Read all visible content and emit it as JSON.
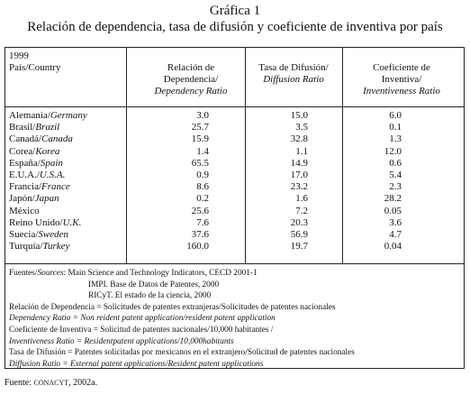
{
  "header": {
    "label": "Gráfica 1",
    "title": "Relación de dependencia, tasa de difusión y coeficiente de inventiva por país"
  },
  "table": {
    "year": "1999",
    "stub_header": "País/Country",
    "columns": [
      [
        {
          "text": "Relación de"
        },
        {
          "text": "Dependencia/"
        },
        {
          "text": "Dependency Ratio",
          "italic": true
        }
      ],
      [
        {
          "text": "Tasa de Difusión/"
        },
        {
          "text": "Diffusion Ratio",
          "italic": true
        }
      ],
      [
        {
          "text": "Coeficiente de"
        },
        {
          "text": "Inventiva/"
        },
        {
          "text": "Inventiveness Ratio",
          "italic": true
        }
      ]
    ],
    "rows": [
      {
        "country": [
          {
            "text": "Alemania/"
          },
          {
            "text": "Germany",
            "italic": true
          }
        ],
        "values": [
          "3.0",
          "15.0",
          "6.0"
        ]
      },
      {
        "country": [
          {
            "text": "Brasil/"
          },
          {
            "text": "Brazil",
            "italic": true
          }
        ],
        "values": [
          "25.7",
          "3.5",
          "0.1"
        ]
      },
      {
        "country": [
          {
            "text": "Canadá/"
          },
          {
            "text": "Canada",
            "italic": true
          }
        ],
        "values": [
          "15.9",
          "32.8",
          "1.3"
        ]
      },
      {
        "country": [
          {
            "text": "Corea/"
          },
          {
            "text": "Korea",
            "italic": true
          }
        ],
        "values": [
          "1.4",
          "1.1",
          "12.0"
        ]
      },
      {
        "country": [
          {
            "text": "España/"
          },
          {
            "text": "Spain",
            "italic": true
          }
        ],
        "values": [
          "65.5",
          "14.9",
          "0.6"
        ]
      },
      {
        "country": [
          {
            "text": "E.U.A./"
          },
          {
            "text": "U.S.A.",
            "italic": true
          }
        ],
        "values": [
          "0.9",
          "17.0",
          "5.4"
        ]
      },
      {
        "country": [
          {
            "text": "Francia/"
          },
          {
            "text": "France",
            "italic": true
          }
        ],
        "values": [
          "8.6",
          "23.2",
          "2.3"
        ]
      },
      {
        "country": [
          {
            "text": "Japón/"
          },
          {
            "text": "Japan",
            "italic": true
          }
        ],
        "values": [
          "0.2",
          "1.6",
          "28.2"
        ]
      },
      {
        "country": [
          {
            "text": "México"
          }
        ],
        "values": [
          "25.6",
          "7.2",
          "0.05"
        ]
      },
      {
        "country": [
          {
            "text": "Reino Unido/"
          },
          {
            "text": "U.K.",
            "italic": true
          }
        ],
        "values": [
          "7.6",
          "20.3",
          "3.6"
        ]
      },
      {
        "country": [
          {
            "text": "Suecia/"
          },
          {
            "text": "Sweden",
            "italic": true
          }
        ],
        "values": [
          "37.6",
          "56.9",
          "4.7"
        ]
      },
      {
        "country": [
          {
            "text": "Turquía/"
          },
          {
            "text": "Turkey",
            "italic": true
          }
        ],
        "values": [
          "160.0",
          "19.7",
          "0.04"
        ]
      }
    ]
  },
  "notes": [
    [
      {
        "text": "Fuentes/"
      },
      {
        "text": "Sources",
        "italic": true
      },
      {
        "text": ": Main Science and Technology Indicators, CECD 2001-1"
      }
    ],
    [
      {
        "text": "IMPI. Base de Datos de Patentes, 2000",
        "indent": true
      }
    ],
    [
      {
        "text": "RICyT. El estado de la ciencia, 2000",
        "indent": true
      }
    ],
    [
      {
        "text": "Relación de Dependencia = Solicitudes de patentes extranjeras/Solicitudes de patentes nacionales"
      }
    ],
    [
      {
        "text": "Dependency Ratio = Non reident patent application/resident patent application",
        "italic": true
      }
    ],
    [
      {
        "text": "Coeficiente de Inventiva = Solicitud de patentes nacionales/10,000 habitantes /"
      }
    ],
    [
      {
        "text": "Inventiveness Ratio = Residentpatent applications/10,000habitants",
        "italic": true
      }
    ],
    [
      {
        "text": "Tasa de Difusión = Patentes solicitadas por mexicanos en el extranjero/Solicitud de patentes nacionales"
      }
    ],
    [
      {
        "text": "Diffusion Ratio = External patent applications/Resident patent applications",
        "italic": true
      }
    ]
  ],
  "source": [
    {
      "text": "Fuente: "
    },
    {
      "text": "CONACYT",
      "small_caps": true
    },
    {
      "text": ", 2002a."
    }
  ]
}
